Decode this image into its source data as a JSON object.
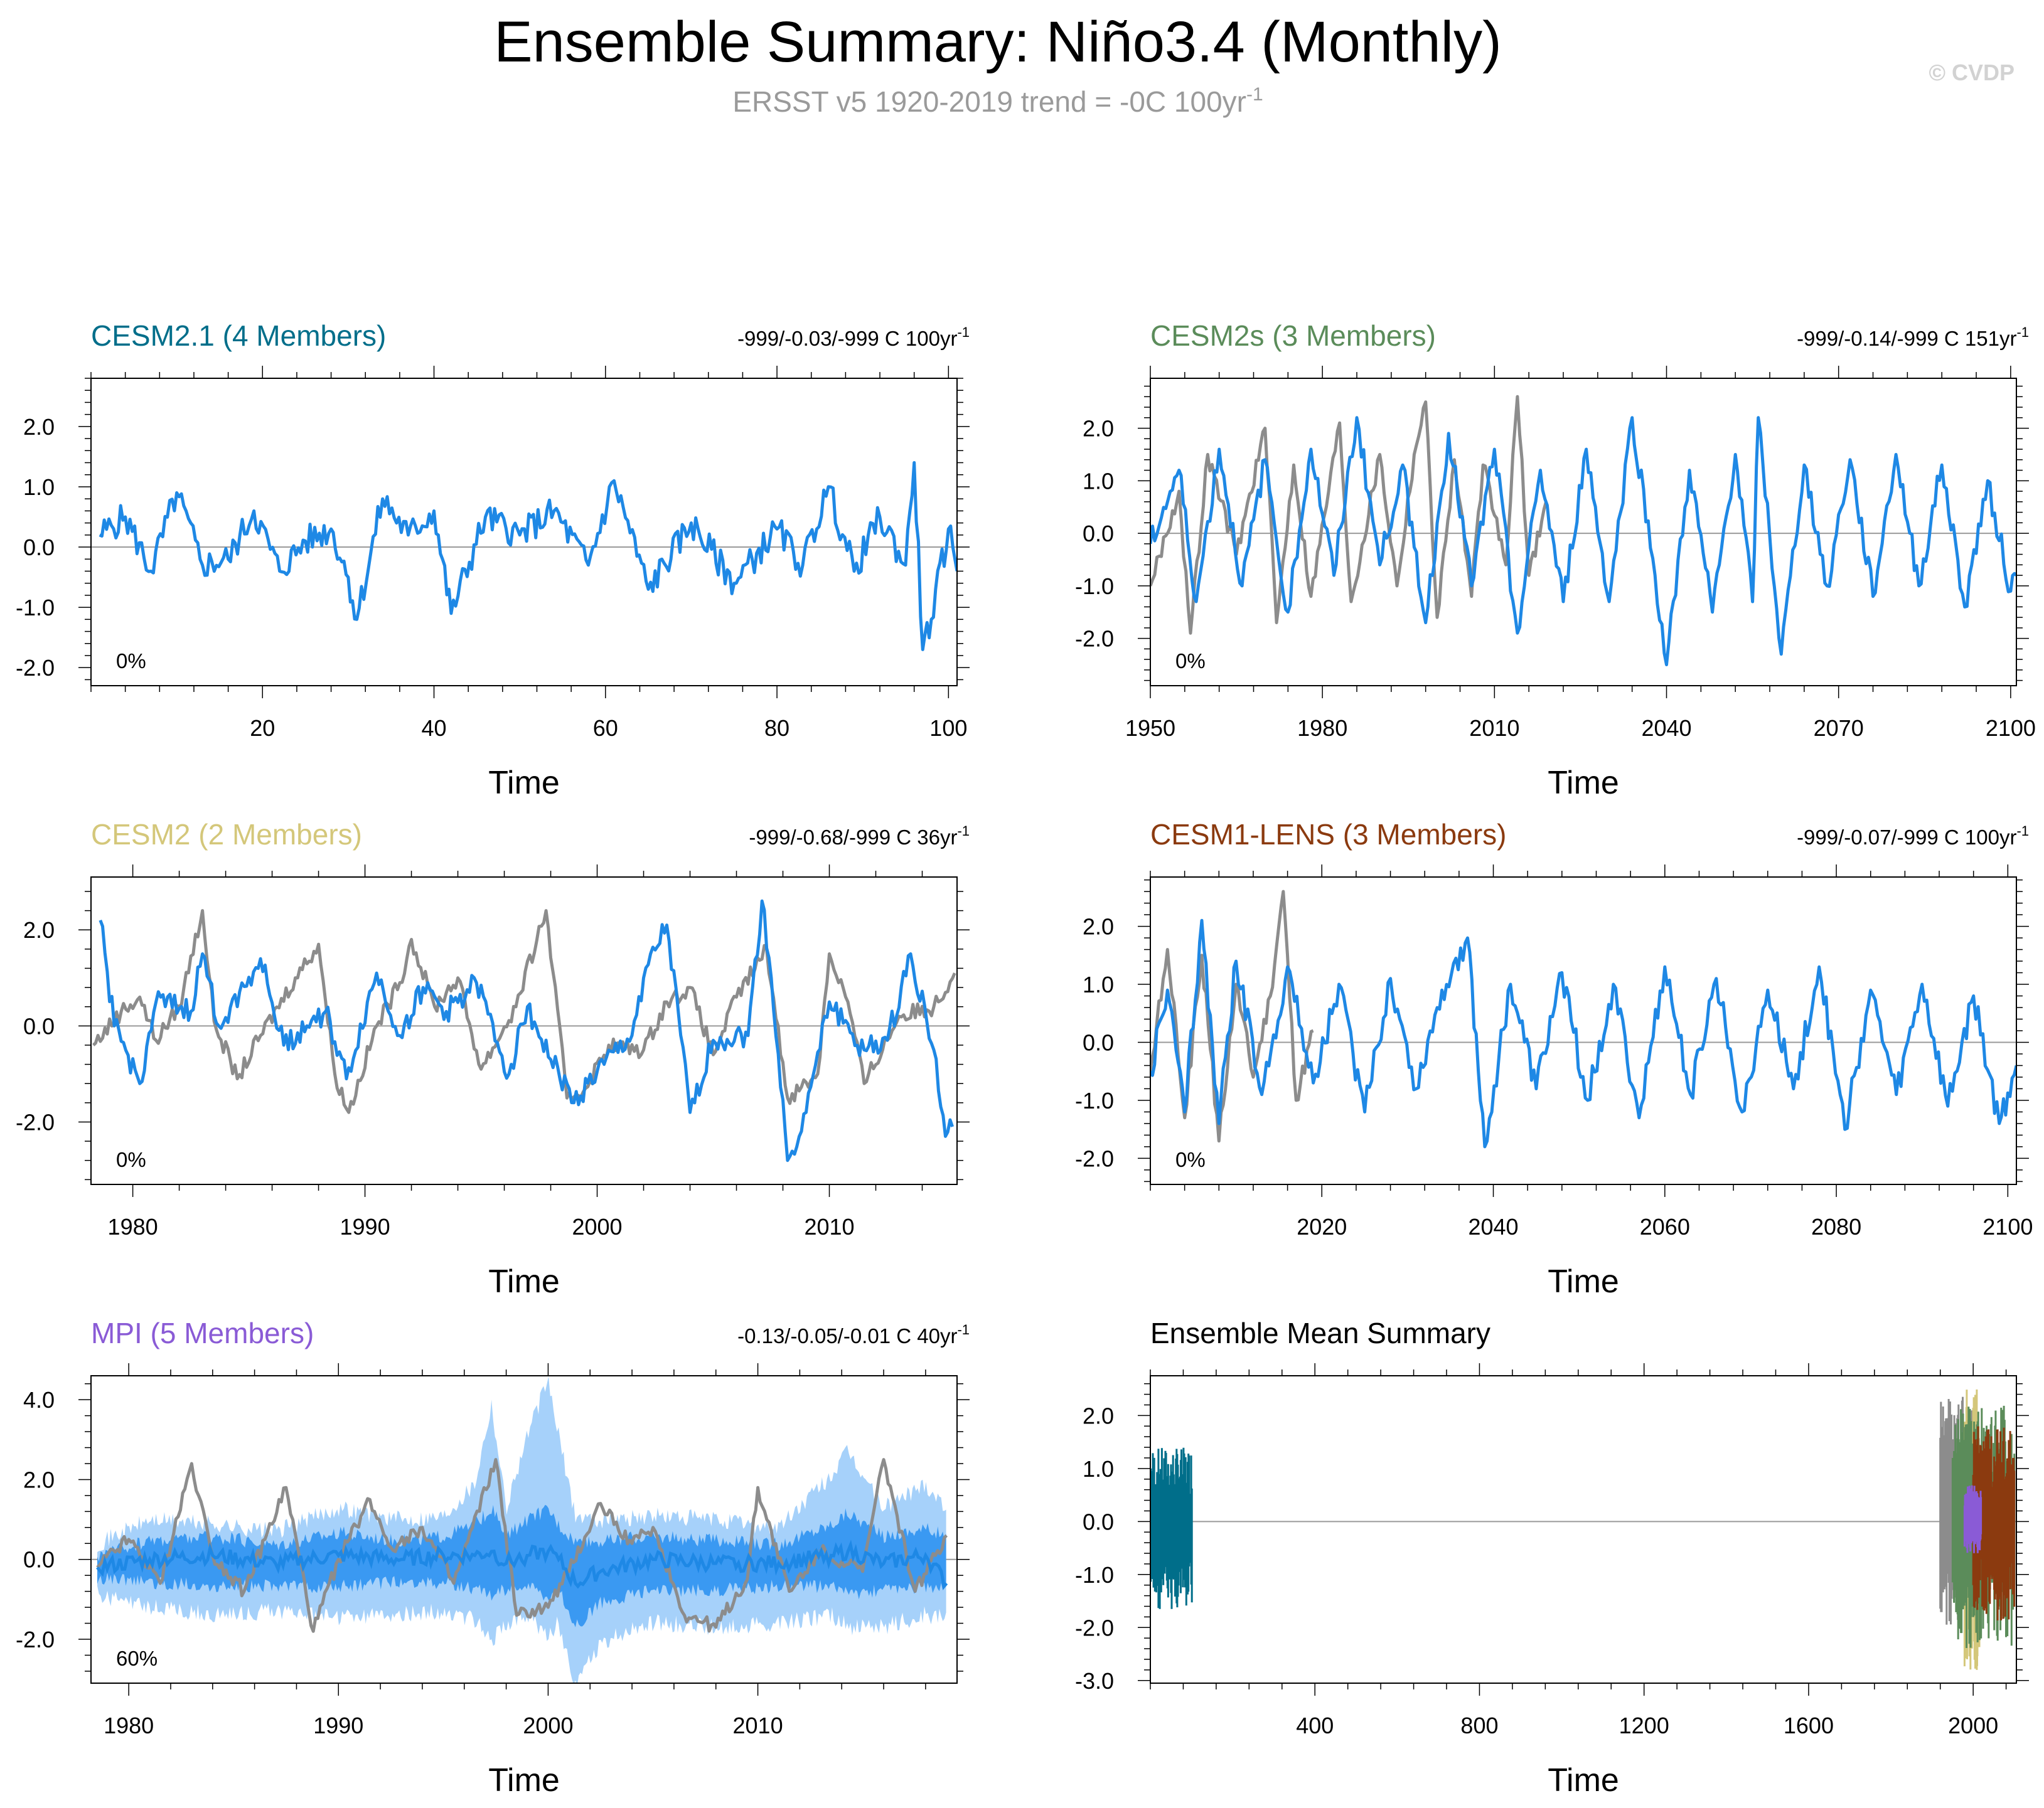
{
  "title": "Ensemble Summary: Niño3.4 (Monthly)",
  "subtitle": {
    "main": "ERSST v5 1920-2019 trend = -0C 100yr",
    "sup": "-1"
  },
  "credit": "© CVDP",
  "colors": {
    "obs": "#8c8c8c",
    "member": "#1e88e5",
    "spread_outer": "#a6d1fa",
    "spread_inner": "#3a99f2",
    "cesm21": "#006e8a",
    "cesm2s": "#5b8c5a",
    "cesm2": "#d4c77a",
    "cesm1lens": "#8b3a0f",
    "mpi": "#8a5bd6",
    "zero_line": "#9a9a9a"
  },
  "chart_data": [
    {
      "id": "cesm21",
      "type": "line",
      "title": "CESM2.1 (4 Members)",
      "trend": {
        "text": "-999/-0.03/-999 C 100yr",
        "sup": "-1"
      },
      "xlabel": "Time",
      "pct": "0%",
      "xlim": [
        0,
        101
      ],
      "ylim": [
        -2.3,
        2.8
      ],
      "xticks": [
        20,
        40,
        60,
        80,
        100
      ],
      "xtick_labels": [
        "20",
        "40",
        "60",
        "80",
        "100"
      ],
      "yticks": [
        -2,
        -1,
        0,
        1,
        2
      ],
      "ytick_labels": [
        "-2.0",
        "-1.0",
        "0.0",
        "1.0",
        "2.0"
      ],
      "series": [
        {
          "role": "member",
          "x": [
            1,
            4,
            7,
            10,
            13,
            16,
            19,
            22,
            25,
            28,
            30,
            31,
            34,
            37,
            40,
            42,
            46,
            50,
            54,
            58,
            61,
            65,
            70,
            75,
            80,
            83,
            86,
            89,
            92,
            95,
            96,
            97,
            98,
            100,
            101
          ],
          "y": [
            0.2,
            0.5,
            -0.4,
            0.9,
            -0.3,
            -0.2,
            0.6,
            -0.4,
            0.1,
            0.3,
            -0.5,
            -1.2,
            0.8,
            0.2,
            0.6,
            -1.1,
            0.5,
            0.2,
            0.6,
            -0.3,
            1.1,
            -0.7,
            0.4,
            -0.6,
            0.3,
            -0.3,
            1.0,
            -0.4,
            0.5,
            -0.3,
            1.4,
            -1.7,
            -1.2,
            0.3,
            -0.4
          ]
        }
      ]
    },
    {
      "id": "cesm2s",
      "type": "line",
      "title": "CESM2s (3 Members)",
      "trend": {
        "text": "-999/-0.14/-999 C 151yr",
        "sup": "-1"
      },
      "xlabel": "Time",
      "pct": "0%",
      "xlim": [
        1950,
        2101
      ],
      "ylim": [
        -2.9,
        2.95
      ],
      "xticks": [
        1950,
        1980,
        2010,
        2040,
        2070,
        2100
      ],
      "xtick_labels": [
        "1950",
        "1980",
        "2010",
        "2040",
        "2070",
        "2100"
      ],
      "yticks": [
        -2,
        -1,
        0,
        1,
        2
      ],
      "ytick_labels": [
        "-2.0",
        "-1.0",
        "0.0",
        "1.0",
        "2.0"
      ],
      "series": [
        {
          "role": "obs",
          "x": [
            1950,
            1955,
            1957,
            1960,
            1965,
            1970,
            1972,
            1975,
            1978,
            1983,
            1985,
            1990,
            1993,
            1996,
            1998,
            2000,
            2003,
            2006,
            2008,
            2012,
            2014,
            2016,
            2019
          ],
          "y": [
            -1.0,
            0.8,
            -1.9,
            1.5,
            -0.4,
            2.0,
            -1.7,
            1.3,
            -1.2,
            2.1,
            -1.3,
            1.5,
            -1.0,
            1.5,
            2.5,
            -1.6,
            1.4,
            -1.2,
            1.3,
            -0.6,
            2.6,
            -0.8,
            0.6
          ]
        },
        {
          "role": "member",
          "x": [
            1950,
            1955,
            1958,
            1962,
            1966,
            1970,
            1974,
            1978,
            1982,
            1986,
            1990,
            1994,
            1998,
            2002,
            2006,
            2010,
            2014,
            2018,
            2022,
            2026,
            2030,
            2034,
            2038,
            2040,
            2044,
            2048,
            2052,
            2055,
            2056,
            2060,
            2064,
            2068,
            2072,
            2076,
            2080,
            2084,
            2088,
            2092,
            2096,
            2100,
            2101
          ],
          "y": [
            -0.2,
            1.2,
            -1.3,
            1.6,
            -1.0,
            1.4,
            -1.5,
            1.6,
            -0.8,
            2.2,
            -0.6,
            1.3,
            -1.7,
            1.9,
            -1.0,
            1.6,
            -1.9,
            1.2,
            -1.3,
            1.6,
            -1.3,
            2.2,
            -0.8,
            -2.5,
            1.2,
            -1.5,
            1.5,
            -1.3,
            2.2,
            -2.3,
            1.3,
            -1.0,
            1.4,
            -1.2,
            1.5,
            -1.0,
            1.3,
            -1.4,
            1.0,
            -1.1,
            -0.8
          ]
        }
      ]
    },
    {
      "id": "cesm2",
      "type": "line",
      "title": "CESM2 (2 Members)",
      "trend": {
        "text": "-999/-0.68/-999 C 36yr",
        "sup": "-1"
      },
      "xlabel": "Time",
      "pct": "0%",
      "xlim": [
        1978.2,
        2015.5
      ],
      "ylim": [
        -3.3,
        3.1
      ],
      "xticks": [
        1980,
        1990,
        2000,
        2010
      ],
      "xtick_labels": [
        "1980",
        "1990",
        "2000",
        "2010"
      ],
      "yticks": [
        -2,
        0,
        2
      ],
      "ytick_labels": [
        "-2.0",
        "0.0",
        "2.0"
      ],
      "series": [
        {
          "role": "obs",
          "x": [
            1978.3,
            1979.5,
            1980.3,
            1981,
            1982,
            1983,
            1983.5,
            1984.5,
            1985.5,
            1987,
            1988,
            1988.7,
            1989.3,
            1990.5,
            1991.5,
            1992,
            1993,
            1994,
            1995,
            1996.5,
            1997.8,
            1998.7,
            1999.5,
            2000.5,
            2002,
            2003,
            2004,
            2005,
            2006,
            2007.3,
            2008.2,
            2009.5,
            2010,
            2010.8,
            2011.5,
            2013,
            2014.5,
            2015.4
          ],
          "y": [
            -0.4,
            0.3,
            0.6,
            -0.3,
            0.4,
            2.4,
            0.1,
            -1.1,
            -0.2,
            1.0,
            1.7,
            -1.0,
            -1.8,
            0.0,
            0.9,
            1.8,
            0.4,
            1.0,
            -0.9,
            0.4,
            2.4,
            -1.5,
            -1.3,
            -0.4,
            -0.5,
            0.5,
            0.8,
            -0.6,
            0.6,
            1.6,
            -1.5,
            -1.0,
            1.5,
            0.5,
            -1.2,
            0.2,
            0.4,
            1.1
          ]
        },
        {
          "role": "member",
          "x": [
            1978.6,
            1979.2,
            1980.3,
            1981,
            1982.5,
            1983,
            1983.7,
            1985.5,
            1986.5,
            1987.5,
            1988.3,
            1989.2,
            1990.5,
            1991.5,
            1992.5,
            1993.5,
            1994.8,
            1996.2,
            1997,
            1998,
            1999,
            2000.3,
            2001.5,
            2002,
            2003,
            2004,
            2005,
            2006.5,
            2007.1,
            2007.5,
            2008.2,
            2009,
            2010,
            2011.5,
            2012.5,
            2013.5,
            2014.5,
            2015,
            2015.3
          ],
          "y": [
            2.2,
            0.0,
            -1.2,
            0.5,
            0.3,
            1.5,
            0.0,
            1.4,
            -0.4,
            0.0,
            0.3,
            -1.1,
            1.1,
            -0.2,
            0.8,
            0.3,
            0.9,
            -1.0,
            0.4,
            -0.7,
            -1.6,
            -0.8,
            -0.2,
            1.0,
            2.1,
            -1.8,
            -0.3,
            -0.2,
            2.6,
            1.0,
            -2.8,
            -1.8,
            0.5,
            -0.5,
            -0.3,
            1.5,
            -0.5,
            -2.3,
            -2.1
          ]
        }
      ]
    },
    {
      "id": "cesm1lens",
      "type": "line",
      "title": "CESM1-LENS (3 Members)",
      "trend": {
        "text": "-999/-0.07/-999 C 100yr",
        "sup": "-1"
      },
      "xlabel": "Time",
      "pct": "0%",
      "xlim": [
        2000,
        2101
      ],
      "ylim": [
        -2.45,
        2.85
      ],
      "xticks": [
        2020,
        2040,
        2060,
        2080,
        2100
      ],
      "xtick_labels": [
        "2020",
        "2040",
        "2060",
        "2080",
        "2100"
      ],
      "yticks": [
        -2,
        -1,
        0,
        1,
        2
      ],
      "ytick_labels": [
        "-2.0",
        "-1.0",
        "0.0",
        "1.0",
        "2.0"
      ],
      "series": [
        {
          "role": "obs",
          "x": [
            2000,
            2002,
            2004,
            2006,
            2008,
            2010,
            2012,
            2014,
            2015.5,
            2017,
            2019
          ],
          "y": [
            -0.5,
            1.6,
            -1.3,
            1.5,
            -1.7,
            1.0,
            -0.6,
            0.8,
            2.6,
            -1.0,
            0.2
          ]
        },
        {
          "role": "member",
          "x": [
            2000,
            2002,
            2004,
            2006,
            2008,
            2010,
            2013,
            2016,
            2019,
            2022,
            2025,
            2028,
            2031,
            2034,
            2037,
            2039,
            2042,
            2045,
            2048,
            2051,
            2054,
            2057,
            2060,
            2063,
            2066,
            2069,
            2072,
            2075,
            2078,
            2081,
            2084,
            2087,
            2090,
            2093,
            2096,
            2099,
            2101
          ],
          "y": [
            -0.5,
            0.9,
            -1.2,
            2.1,
            -1.4,
            1.4,
            -0.9,
            1.3,
            -0.7,
            1.0,
            -1.2,
            1.1,
            -0.8,
            0.9,
            1.8,
            -1.8,
            1.0,
            -0.8,
            1.2,
            -1.0,
            1.0,
            -1.3,
            1.3,
            -0.9,
            1.1,
            -1.2,
            0.9,
            -0.8,
            1.3,
            -1.5,
            0.9,
            -0.9,
            1.0,
            -1.1,
            0.8,
            -1.4,
            -0.4
          ]
        }
      ]
    },
    {
      "id": "mpi",
      "type": "area",
      "title": "MPI (5 Members)",
      "trend": {
        "text": "-0.13/-0.05/-0.01 C 40yr",
        "sup": "-1"
      },
      "xlabel": "Time",
      "pct": "60%",
      "xlim": [
        1978.2,
        2019.5
      ],
      "ylim": [
        -3.1,
        4.6
      ],
      "xticks": [
        1980,
        1990,
        2000,
        2010
      ],
      "xtick_labels": [
        "1980",
        "1990",
        "2000",
        "2010"
      ],
      "yticks": [
        -2,
        0,
        2,
        4
      ],
      "ytick_labels": [
        "-2.0",
        "0.0",
        "2.0",
        "4.0"
      ],
      "spread": {
        "x": [
          1978.5,
          1981,
          1984,
          1987,
          1990,
          1993,
          1995,
          1996.5,
          1997.3,
          1998,
          1999,
          2000,
          2000.5,
          2001.3,
          2002.5,
          2005,
          2008,
          2011,
          2013.5,
          2014.3,
          2016,
          2018,
          2019
        ],
        "max": [
          0.3,
          0.9,
          0.8,
          0.6,
          1.2,
          0.9,
          1.0,
          1.8,
          3.8,
          1.2,
          3.0,
          4.4,
          3.0,
          1.0,
          0.9,
          1.0,
          0.9,
          0.7,
          2.0,
          2.6,
          1.2,
          1.8,
          1.2
        ],
        "min": [
          -0.8,
          -1.1,
          -1.3,
          -1.2,
          -1.4,
          -1.3,
          -1.2,
          -1.4,
          -1.9,
          -1.6,
          -1.3,
          -1.8,
          -1.5,
          -3.0,
          -2.0,
          -1.5,
          -1.6,
          -1.5,
          -1.3,
          -1.6,
          -1.6,
          -1.3,
          -1.4
        ],
        "p75": [
          0.0,
          0.4,
          0.5,
          0.3,
          0.6,
          0.4,
          0.5,
          0.8,
          1.2,
          0.5,
          0.9,
          1.2,
          0.8,
          0.4,
          0.4,
          0.5,
          0.4,
          0.3,
          0.8,
          1.1,
          0.5,
          0.7,
          0.5
        ],
        "p25": [
          -0.4,
          -0.5,
          -0.6,
          -0.6,
          -0.6,
          -0.5,
          -0.5,
          -0.7,
          -0.8,
          -0.7,
          -0.6,
          -0.9,
          -0.7,
          -1.6,
          -1.0,
          -0.7,
          -0.7,
          -0.6,
          -0.6,
          -0.8,
          -0.7,
          -0.6,
          -0.6
        ],
        "mean": [
          -0.2,
          0.0,
          0.1,
          -0.1,
          0.1,
          0.0,
          0.1,
          0.1,
          0.2,
          -0.1,
          0.1,
          0.2,
          0.0,
          -0.6,
          -0.3,
          0.0,
          -0.1,
          -0.1,
          0.1,
          0.2,
          -0.1,
          0.1,
          -0.6
        ]
      },
      "series": [
        {
          "role": "obs",
          "x": [
            1978.5,
            1980,
            1981.5,
            1983,
            1984,
            1985.5,
            1987.5,
            1988.8,
            1990,
            1991.5,
            1992.5,
            1994,
            1995.5,
            1997.5,
            1998.5,
            2000,
            2001,
            2002.5,
            2004,
            2005,
            2006.5,
            2008,
            2009.5,
            2010,
            2011.5,
            2013,
            2015,
            2016,
            2017.5,
            2019
          ],
          "y": [
            -0.2,
            0.5,
            -0.6,
            2.4,
            0.1,
            -0.8,
            1.8,
            -1.8,
            0.0,
            1.5,
            0.3,
            0.8,
            -0.6,
            2.5,
            -1.4,
            -1.2,
            -0.3,
            1.4,
            0.4,
            0.8,
            -1.4,
            -1.7,
            -0.5,
            1.8,
            -0.8,
            0.2,
            -0.3,
            2.5,
            -0.8,
            0.6
          ]
        }
      ]
    },
    {
      "id": "ensmean",
      "type": "line",
      "title": "Ensemble Mean Summary",
      "trend": null,
      "xlabel": "Time",
      "pct": "",
      "xlim": [
        0,
        2105
      ],
      "ylim": [
        -3.05,
        2.75
      ],
      "xticks": [
        400,
        800,
        1200,
        1600,
        2000
      ],
      "xtick_labels": [
        "400",
        "800",
        "1200",
        "1600",
        "2000"
      ],
      "yticks": [
        -3,
        -2,
        -1,
        0,
        1,
        2
      ],
      "ytick_labels": [
        "-3.0",
        "-2.0",
        "-1.0",
        "0.0",
        "1.0",
        "2.0"
      ],
      "blocks": [
        {
          "color_key": "cesm21",
          "xmin": 1,
          "xmax": 101,
          "ymin": -1.7,
          "ymax": 1.4
        },
        {
          "color_key": "obs",
          "xmin": 1920,
          "xmax": 2019,
          "ymin": -2.0,
          "ymax": 2.4
        },
        {
          "color_key": "cesm2",
          "xmin": 1979,
          "xmax": 2015,
          "ymin": -2.8,
          "ymax": 2.6
        },
        {
          "color_key": "cesm2s",
          "xmin": 1950,
          "xmax": 2100,
          "ymin": -2.4,
          "ymax": 2.2
        },
        {
          "color_key": "cesm1lens",
          "xmin": 2000,
          "xmax": 2100,
          "ymin": -1.9,
          "ymax": 1.8
        },
        {
          "color_key": "mpi",
          "xmin": 1979,
          "xmax": 2019,
          "ymin": -0.6,
          "ymax": 0.7
        }
      ]
    }
  ]
}
